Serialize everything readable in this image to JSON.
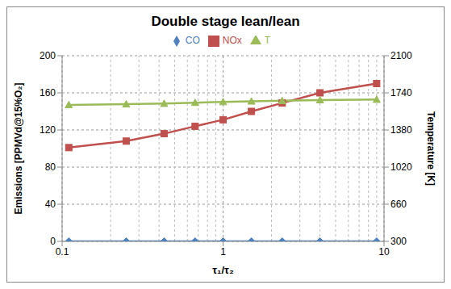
{
  "chart_data": {
    "type": "line",
    "title": "Double stage lean/lean",
    "x_label": "τ₁/τ₂",
    "y_label": "Emissions [PPMVd@15%O₂]",
    "y2_label": "Temperature [K]",
    "x": [
      0.11,
      0.25,
      0.43,
      0.67,
      1,
      1.5,
      2.33,
      4,
      9
    ],
    "series": [
      {
        "name": "CO",
        "color": "#4f81bd",
        "marker": "diamond",
        "values": [
          0,
          0,
          0,
          0,
          0,
          0,
          0,
          0,
          0
        ]
      },
      {
        "name": "NOx",
        "color": "#c0504d",
        "marker": "square",
        "values": [
          101,
          108,
          116,
          124,
          131,
          140,
          149,
          160,
          170
        ]
      },
      {
        "name": "T",
        "color": "#9bbb59",
        "marker": "triangle",
        "axis": "y2",
        "values": [
          1623,
          1630,
          1636,
          1645,
          1652,
          1658,
          1663,
          1670,
          1675
        ]
      }
    ],
    "log": "x",
    "xlim": [
      0.1,
      10
    ],
    "xticks": [
      0.1,
      1,
      10
    ],
    "ylim": [
      0,
      200
    ],
    "yticks": [
      0,
      40,
      80,
      120,
      160,
      200
    ],
    "y2lim": [
      300,
      2100
    ],
    "y2ticks": [
      300,
      660,
      1020,
      1380,
      1740,
      2100
    ],
    "grid": true,
    "legend": "top"
  }
}
